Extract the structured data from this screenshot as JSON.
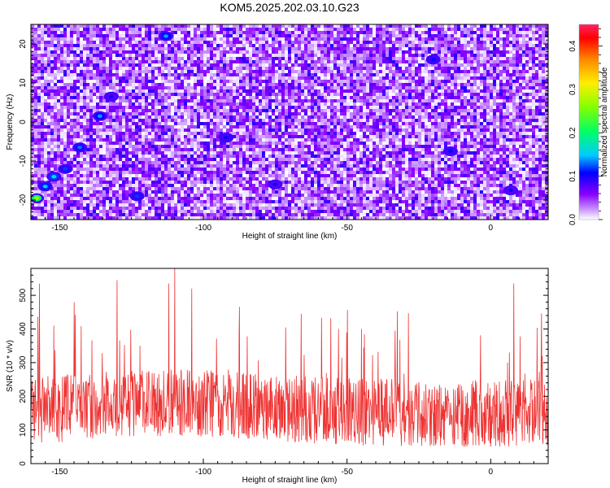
{
  "title": "KOM5.2025.202.03.10.G23",
  "colors": {
    "snr_line": "#ee3333",
    "axis": "#000000",
    "background": "#ffffff"
  },
  "chart_data": [
    {
      "type": "heatmap",
      "xlabel": "Height of straight line (km)",
      "ylabel": "Frequency (Hz)",
      "xlim": [
        -160,
        20
      ],
      "ylim": [
        -25,
        25
      ],
      "x_ticks": [
        -150,
        -100,
        -50,
        0
      ],
      "y_ticks": [
        -20,
        -10,
        0,
        10,
        20
      ],
      "colorbar": {
        "label": "Normalized spectral amplitude",
        "range": [
          0,
          0.45
        ],
        "ticks": [
          0,
          0.1,
          0.2,
          0.3,
          0.4
        ],
        "colormap": [
          "#ffffff",
          "#8800ff",
          "#0000ff",
          "#00ccff",
          "#00ff66",
          "#88ff00",
          "#ffee00",
          "#ff8800",
          "#ff0000",
          "#ff2266"
        ]
      },
      "background_level": "0.02-0.08 speckle across full field",
      "hotspots": [
        {
          "x": -158,
          "y": -19.5,
          "value": 0.27
        },
        {
          "x": -155,
          "y": -16.5,
          "value": 0.15
        },
        {
          "x": -152,
          "y": -14,
          "value": 0.16
        },
        {
          "x": -148,
          "y": -12,
          "value": 0.12
        },
        {
          "x": -143,
          "y": -6.5,
          "value": 0.13
        },
        {
          "x": -136,
          "y": 1.5,
          "value": 0.14
        },
        {
          "x": -132,
          "y": 6.5,
          "value": 0.1
        },
        {
          "x": -113,
          "y": 22,
          "value": 0.14
        },
        {
          "x": -123,
          "y": -19,
          "value": 0.12
        },
        {
          "x": -92,
          "y": -4,
          "value": 0.11
        },
        {
          "x": -75,
          "y": -16,
          "value": 0.1
        },
        {
          "x": -20,
          "y": 16,
          "value": 0.11
        },
        {
          "x": -14,
          "y": -7.5,
          "value": 0.11
        },
        {
          "x": 7,
          "y": -17.5,
          "value": 0.1
        }
      ]
    },
    {
      "type": "line",
      "xlabel": "Height of straight line (km)",
      "ylabel": "SNR (10 * v/v)",
      "xlim": [
        -160,
        20
      ],
      "ylim": [
        0,
        580
      ],
      "x_ticks": [
        -150,
        -100,
        -50,
        0
      ],
      "y_ticks": [
        0,
        100,
        200,
        300,
        400,
        500
      ],
      "grid": false,
      "series": [
        {
          "baseline_range": [
            50,
            320
          ],
          "typical_level": 150,
          "peaks": [
            {
              "x": -157,
              "y": 535
            },
            {
              "x": -152,
              "y": 410
            },
            {
              "x": -145,
              "y": 480
            },
            {
              "x": -130,
              "y": 545
            },
            {
              "x": -122,
              "y": 350
            },
            {
              "x": -112,
              "y": 535
            },
            {
              "x": -110,
              "y": 580
            },
            {
              "x": -104,
              "y": 520
            },
            {
              "x": -66,
              "y": 445
            },
            {
              "x": -53,
              "y": 400
            },
            {
              "x": -45,
              "y": 400
            },
            {
              "x": 8,
              "y": 535
            },
            {
              "x": 18,
              "y": 320
            }
          ]
        }
      ]
    }
  ]
}
